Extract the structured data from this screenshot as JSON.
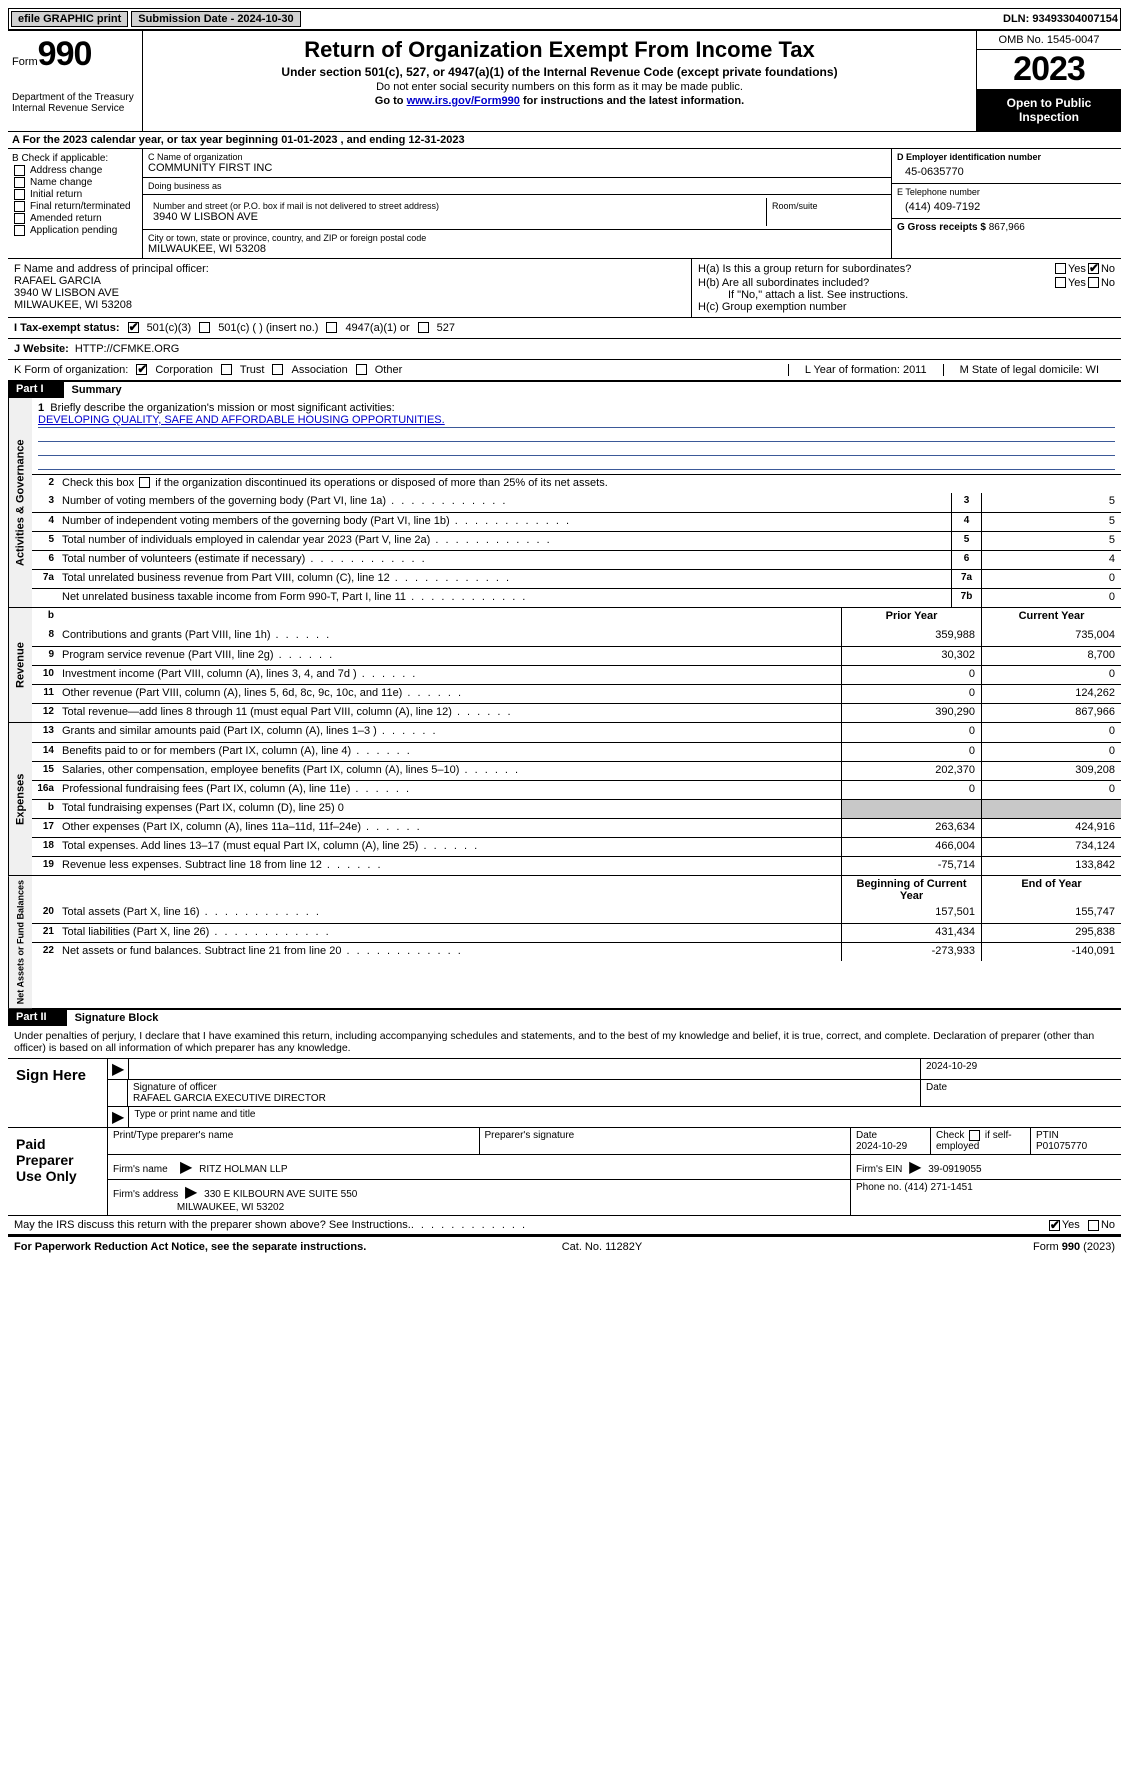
{
  "top": {
    "efile": "efile GRAPHIC print",
    "submission": "Submission Date - 2024-10-30",
    "dln": "DLN: 93493304007154"
  },
  "header": {
    "form_label": "Form",
    "form_no": "990",
    "title": "Return of Organization Exempt From Income Tax",
    "subtitle": "Under section 501(c), 527, or 4947(a)(1) of the Internal Revenue Code (except private foundations)",
    "note1": "Do not enter social security numbers on this form as it may be made public.",
    "note2_pre": "Go to ",
    "note2_link": "www.irs.gov/Form990",
    "note2_post": " for instructions and the latest information.",
    "dept": "Department of the Treasury Internal Revenue Service",
    "omb": "OMB No. 1545-0047",
    "year": "2023",
    "open": "Open to Public Inspection"
  },
  "row_a": "A For the 2023 calendar year, or tax year beginning 01-01-2023   , and ending 12-31-2023",
  "b": {
    "hdr": "B Check if applicable:",
    "o1": "Address change",
    "o2": "Name change",
    "o3": "Initial return",
    "o4": "Final return/terminated",
    "o5": "Amended return",
    "o6": "Application pending"
  },
  "c": {
    "name_lbl": "C Name of organization",
    "name": "COMMUNITY FIRST INC",
    "dba_lbl": "Doing business as",
    "dba": "",
    "street_lbl": "Number and street (or P.O. box if mail is not delivered to street address)",
    "room_lbl": "Room/suite",
    "street": "3940 W LISBON AVE",
    "city_lbl": "City or town, state or province, country, and ZIP or foreign postal code",
    "city": "MILWAUKEE, WI  53208"
  },
  "d": {
    "lbl": "D Employer identification number",
    "val": "45-0635770"
  },
  "e": {
    "lbl": "E Telephone number",
    "val": "(414) 409-7192"
  },
  "g": {
    "lbl": "G Gross receipts $",
    "val": "867,966"
  },
  "f": {
    "lbl": "F  Name and address of principal officer:",
    "name": "RAFAEL GARCIA",
    "addr1": "3940 W LISBON AVE",
    "addr2": "MILWAUKEE, WI  53208"
  },
  "h": {
    "a_lbl": "H(a)  Is this a group return for subordinates?",
    "b_lbl": "H(b)  Are all subordinates included?",
    "b_note": "If \"No,\" attach a list. See instructions.",
    "c_lbl": "H(c)  Group exemption number",
    "yes": "Yes",
    "no": "No"
  },
  "i": {
    "lbl": "I   Tax-exempt status:",
    "o1": "501(c)(3)",
    "o2": "501(c) (  ) (insert no.)",
    "o3": "4947(a)(1) or",
    "o4": "527"
  },
  "j": {
    "lbl": "J   Website:",
    "val": "HTTP://CFMKE.ORG"
  },
  "k": {
    "lbl": "K Form of organization:",
    "o1": "Corporation",
    "o2": "Trust",
    "o3": "Association",
    "o4": "Other",
    "l": "L Year of formation: 2011",
    "m": "M State of legal domicile: WI"
  },
  "part1": {
    "pt": "Part I",
    "title": "Summary"
  },
  "s1": {
    "lbl": "Briefly describe the organization's mission or most significant activities:",
    "mission": "DEVELOPING QUALITY, SAFE AND AFFORDABLE HOUSING OPPORTUNITIES."
  },
  "s2": "Check this box      if the organization discontinued its operations or disposed of more than 25% of its net assets.",
  "lines_gov": [
    {
      "n": "3",
      "d": "Number of voting members of the governing body (Part VI, line 1a)",
      "box": "3",
      "v": "5"
    },
    {
      "n": "4",
      "d": "Number of independent voting members of the governing body (Part VI, line 1b)",
      "box": "4",
      "v": "5"
    },
    {
      "n": "5",
      "d": "Total number of individuals employed in calendar year 2023 (Part V, line 2a)",
      "box": "5",
      "v": "5"
    },
    {
      "n": "6",
      "d": "Total number of volunteers (estimate if necessary)",
      "box": "6",
      "v": "4"
    },
    {
      "n": "7a",
      "d": "Total unrelated business revenue from Part VIII, column (C), line 12",
      "box": "7a",
      "v": "0"
    },
    {
      "n": "",
      "d": "Net unrelated business taxable income from Form 990-T, Part I, line 11",
      "box": "7b",
      "v": "0"
    }
  ],
  "rev_hdr": {
    "b": "b",
    "py": "Prior Year",
    "cy": "Current Year"
  },
  "lines_rev": [
    {
      "n": "8",
      "d": "Contributions and grants (Part VIII, line 1h)",
      "py": "359,988",
      "cy": "735,004"
    },
    {
      "n": "9",
      "d": "Program service revenue (Part VIII, line 2g)",
      "py": "30,302",
      "cy": "8,700"
    },
    {
      "n": "10",
      "d": "Investment income (Part VIII, column (A), lines 3, 4, and 7d )",
      "py": "0",
      "cy": "0"
    },
    {
      "n": "11",
      "d": "Other revenue (Part VIII, column (A), lines 5, 6d, 8c, 9c, 10c, and 11e)",
      "py": "0",
      "cy": "124,262"
    },
    {
      "n": "12",
      "d": "Total revenue—add lines 8 through 11 (must equal Part VIII, column (A), line 12)",
      "py": "390,290",
      "cy": "867,966"
    }
  ],
  "lines_exp": [
    {
      "n": "13",
      "d": "Grants and similar amounts paid (Part IX, column (A), lines 1–3 )",
      "py": "0",
      "cy": "0"
    },
    {
      "n": "14",
      "d": "Benefits paid to or for members (Part IX, column (A), line 4)",
      "py": "0",
      "cy": "0"
    },
    {
      "n": "15",
      "d": "Salaries, other compensation, employee benefits (Part IX, column (A), lines 5–10)",
      "py": "202,370",
      "cy": "309,208"
    },
    {
      "n": "16a",
      "d": "Professional fundraising fees (Part IX, column (A), line 11e)",
      "py": "0",
      "cy": "0"
    },
    {
      "n": "b",
      "d": "Total fundraising expenses (Part IX, column (D), line 25) 0",
      "py": "",
      "cy": "",
      "shade": true
    },
    {
      "n": "17",
      "d": "Other expenses (Part IX, column (A), lines 11a–11d, 11f–24e)",
      "py": "263,634",
      "cy": "424,916"
    },
    {
      "n": "18",
      "d": "Total expenses. Add lines 13–17 (must equal Part IX, column (A), line 25)",
      "py": "466,004",
      "cy": "734,124"
    },
    {
      "n": "19",
      "d": "Revenue less expenses. Subtract line 18 from line 12",
      "py": "-75,714",
      "cy": "133,842"
    }
  ],
  "na_hdr": {
    "py": "Beginning of Current Year",
    "cy": "End of Year"
  },
  "lines_na": [
    {
      "n": "20",
      "d": "Total assets (Part X, line 16)",
      "py": "157,501",
      "cy": "155,747"
    },
    {
      "n": "21",
      "d": "Total liabilities (Part X, line 26)",
      "py": "431,434",
      "cy": "295,838"
    },
    {
      "n": "22",
      "d": "Net assets or fund balances. Subtract line 21 from line 20",
      "py": "-273,933",
      "cy": "-140,091"
    }
  ],
  "part2": {
    "pt": "Part II",
    "title": "Signature Block"
  },
  "sig_intro": "Under penalties of perjury, I declare that I have examined this return, including accompanying schedules and statements, and to the best of my knowledge and belief, it is true, correct, and complete. Declaration of preparer (other than officer) is based on all information of which preparer has any knowledge.",
  "sign": {
    "here": "Sign Here",
    "date": "2024-10-29",
    "sig_lbl": "Signature of officer",
    "officer": "RAFAEL GARCIA  EXECUTIVE DIRECTOR",
    "type_lbl": "Type or print name and title",
    "date_lbl": "Date"
  },
  "paid": {
    "title": "Paid Preparer Use Only",
    "c1": "Print/Type preparer's name",
    "c2": "Preparer's signature",
    "c3_lbl": "Date",
    "c3": "2024-10-29",
    "c4_lbl": "Check",
    "c4_txt": "if self-employed",
    "c5_lbl": "PTIN",
    "c5": "P01075770",
    "firm_lbl": "Firm's name",
    "firm": "RITZ HOLMAN LLP",
    "ein_lbl": "Firm's EIN",
    "ein": "39-0919055",
    "addr_lbl": "Firm's address",
    "addr1": "330 E KILBOURN AVE SUITE 550",
    "addr2": "MILWAUKEE, WI  53202",
    "phone_lbl": "Phone no.",
    "phone": "(414) 271-1451"
  },
  "may": {
    "q": "May the IRS discuss this return with the preparer shown above? See Instructions.",
    "yes": "Yes",
    "no": "No"
  },
  "footer": {
    "l": "For Paperwork Reduction Act Notice, see the separate instructions.",
    "m": "Cat. No. 11282Y",
    "r": "Form 990 (2023)"
  },
  "tabs": {
    "gov": "Activities & Governance",
    "rev": "Revenue",
    "exp": "Expenses",
    "na": "Net Assets or Fund Balances"
  }
}
